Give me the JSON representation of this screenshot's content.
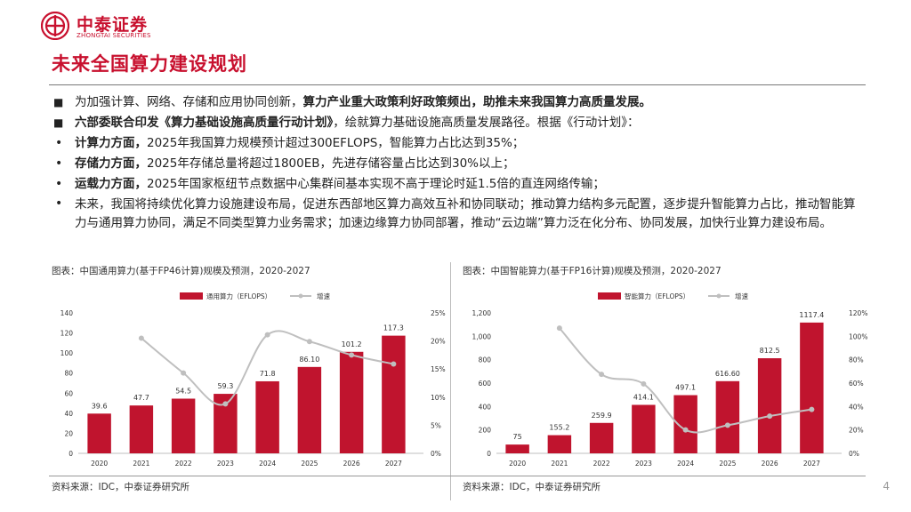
{
  "brand": {
    "name_cn": "中泰证券",
    "name_en": "ZHONGTAI SECURITIES",
    "color": "#c8102e"
  },
  "title": "未来全国算力建设规划",
  "bullets": [
    {
      "marker": "■",
      "runs": [
        {
          "text": "为加强计算、网络、存储和应用协同创新，",
          "bold": false
        },
        {
          "text": "算力产业重大政策利好政策频出，助推未来我国算力高质量发展。",
          "bold": true
        }
      ]
    },
    {
      "marker": "■",
      "runs": [
        {
          "text": "六部委联合印发《算力基础设施高质量行动计划》",
          "bold": true
        },
        {
          "text": "，绘就算力基础设施高质量发展路径。根据《行动计划》：",
          "bold": false
        }
      ]
    },
    {
      "marker": "•",
      "runs": [
        {
          "text": "计算力方面，",
          "bold": true
        },
        {
          "text": "2025年我国算力规模预计超过300EFLOPS，智能算力占比达到35%；",
          "bold": false
        }
      ]
    },
    {
      "marker": "•",
      "runs": [
        {
          "text": "存储力方面，",
          "bold": true
        },
        {
          "text": "2025年存储总量将超过1800EB，先进存储容量占比达到30%以上；",
          "bold": false
        }
      ]
    },
    {
      "marker": "•",
      "runs": [
        {
          "text": "运载力方面，",
          "bold": true
        },
        {
          "text": "2025年国家枢纽节点数据中心集群间基本实现不高于理论时延1.5倍的直连网络传输；",
          "bold": false
        }
      ]
    },
    {
      "marker": "•",
      "runs": [
        {
          "text": "未来，我国将持续优化算力设施建设布局，促进东西部地区算力高效互补和协同联动；推动算力结构多元配置，逐步提升智能算力占比，推动智能算力与通用算力协同，满足不同类型算力业务需求；加速边缘算力协同部署，推动“云边端”算力泛在化分布、协同发展，加快行业算力建设布局。",
          "bold": false
        }
      ]
    }
  ],
  "captions": {
    "left": "图表：中国通用算力(基于FP46计算)规模及预测，2020-2027",
    "right": "图表：中国智能算力(基于FP16计算)规模及预测，2020-2027"
  },
  "sources": {
    "left": "资料来源：IDC，中泰证券研究所",
    "right": "资料来源：IDC，中泰证券研究所"
  },
  "page_number": "4",
  "chart_data": [
    {
      "type": "bar",
      "categories": [
        "2020",
        "2021",
        "2022",
        "2023",
        "2024",
        "2025",
        "2026",
        "2027"
      ],
      "series": [
        {
          "name": "通用算力（EFLOPS）",
          "type": "bar",
          "axis": "left",
          "color": "#c0142e",
          "values": [
            39.6,
            47.7,
            54.5,
            59.3,
            71.8,
            86.1,
            101.2,
            117.3
          ],
          "labels": [
            "39.6",
            "47.7",
            "54.5",
            "59.3",
            "71.8",
            "86.10",
            "101.2",
            "117.3"
          ]
        },
        {
          "name": "增速",
          "type": "line",
          "axis": "right",
          "color": "#bfbfbf",
          "values": [
            null,
            20.5,
            14.3,
            8.8,
            21.1,
            19.9,
            17.5,
            15.9
          ]
        }
      ],
      "left_axis": {
        "min": 0,
        "max": 140,
        "ticks": [
          "0",
          "20",
          "40",
          "60",
          "80",
          "100",
          "120",
          "140"
        ]
      },
      "right_axis": {
        "min": 0,
        "max": 25,
        "ticks": [
          "0%",
          "5%",
          "10%",
          "15%",
          "20%",
          "25%"
        ]
      },
      "legend": "top-center"
    },
    {
      "type": "bar",
      "categories": [
        "2020",
        "2021",
        "2022",
        "2023",
        "2024",
        "2025",
        "2026",
        "2027"
      ],
      "series": [
        {
          "name": "智能算力（EFLOPS）",
          "type": "bar",
          "axis": "left",
          "color": "#c0142e",
          "values": [
            75,
            155.2,
            259.9,
            414.1,
            497.1,
            616.6,
            812.5,
            1117.4
          ],
          "labels": [
            "75",
            "155.2",
            "259.9",
            "414.1",
            "497.1",
            "616.60",
            "812.5",
            "1117.4"
          ]
        },
        {
          "name": "增速",
          "type": "line",
          "axis": "right",
          "color": "#bfbfbf",
          "values": [
            null,
            107,
            67.5,
            59.3,
            20.0,
            24.0,
            31.8,
            37.5
          ]
        }
      ],
      "left_axis": {
        "min": 0,
        "max": 1200,
        "ticks": [
          "0",
          "200",
          "400",
          "600",
          "800",
          "1,000",
          "1,200"
        ]
      },
      "right_axis": {
        "min": 0,
        "max": 120,
        "ticks": [
          "0%",
          "20%",
          "40%",
          "60%",
          "80%",
          "100%",
          "120%"
        ]
      },
      "legend": "top-center"
    }
  ]
}
